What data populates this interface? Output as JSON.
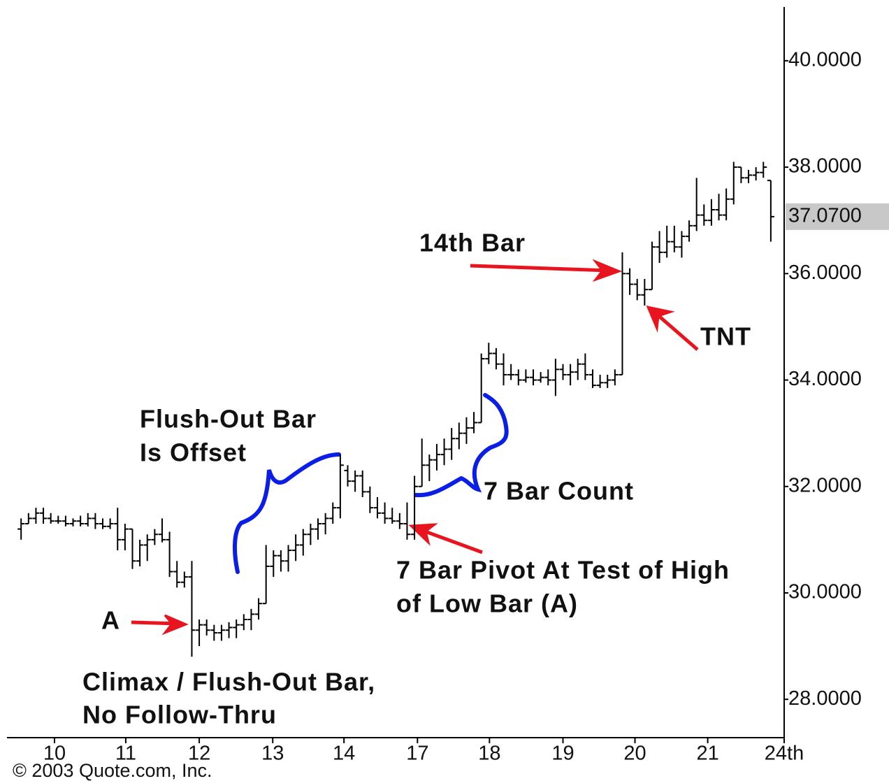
{
  "chart_data": {
    "type": "ohlc",
    "color": "#000000",
    "ylim": [
      27.28,
      41.01
    ],
    "yticks": [
      {
        "value": 28,
        "label": "28.0000"
      },
      {
        "value": 30,
        "label": "30.0000"
      },
      {
        "value": 32,
        "label": "32.0000"
      },
      {
        "value": 34,
        "label": "34.0000"
      },
      {
        "value": 36,
        "label": "36.0000"
      },
      {
        "value": 38,
        "label": "38.0000"
      },
      {
        "value": 40,
        "label": "40.0000"
      }
    ],
    "last_price": {
      "value": 37.07,
      "label": "37.0700"
    },
    "xlim": [
      -1.9,
      102.8
    ],
    "xticks": [
      {
        "value": 4.5,
        "label": "10"
      },
      {
        "value": 14.1,
        "label": "11"
      },
      {
        "value": 24.0,
        "label": "12"
      },
      {
        "value": 33.9,
        "label": "13"
      },
      {
        "value": 43.5,
        "label": "14"
      },
      {
        "value": 53.4,
        "label": "17"
      },
      {
        "value": 63.1,
        "label": "18"
      },
      {
        "value": 73.0,
        "label": "19"
      },
      {
        "value": 82.7,
        "label": "20"
      },
      {
        "value": 92.5,
        "label": "21"
      },
      {
        "value": 102.8,
        "label": "24th"
      }
    ],
    "open": [
      31.2,
      31.3,
      31.4,
      31.5,
      31.4,
      31.35,
      31.35,
      31.3,
      31.35,
      31.3,
      31.4,
      31.3,
      31.25,
      31.3,
      31.0,
      31.2,
      30.6,
      30.9,
      31.0,
      31.1,
      31.0,
      30.4,
      30.2,
      30.3,
      29.3,
      29.4,
      29.3,
      29.25,
      29.3,
      29.35,
      29.4,
      29.5,
      29.6,
      29.8,
      30.5,
      30.7,
      30.6,
      30.8,
      30.9,
      31.1,
      31.2,
      31.3,
      31.4,
      31.6,
      32.3,
      32.1,
      32.2,
      31.9,
      31.6,
      31.5,
      31.4,
      31.35,
      31.3,
      31.1,
      32.0,
      32.4,
      32.5,
      32.6,
      32.7,
      32.9,
      33.0,
      33.1,
      33.2,
      34.4,
      34.5,
      34.3,
      34.1,
      34.1,
      34.0,
      34.05,
      34.0,
      34.05,
      34.0,
      34.2,
      34.1,
      34.15,
      34.3,
      34.1,
      33.9,
      33.95,
      34.0,
      34.1,
      36.0,
      35.8,
      35.6,
      35.7,
      36.5,
      36.4,
      36.6,
      36.5,
      36.7,
      36.9,
      37.1,
      37.0,
      37.2,
      37.1,
      37.4,
      38.0,
      37.8,
      37.85,
      37.9,
      37.75
    ],
    "high": [
      31.4,
      31.5,
      31.6,
      31.6,
      31.5,
      31.45,
      31.45,
      31.4,
      31.45,
      31.5,
      31.5,
      31.4,
      31.4,
      31.6,
      31.3,
      31.2,
      31.0,
      31.1,
      31.2,
      31.4,
      31.15,
      30.6,
      30.4,
      30.6,
      29.5,
      29.5,
      29.4,
      29.4,
      29.45,
      29.5,
      29.6,
      29.7,
      29.9,
      30.9,
      30.8,
      30.8,
      30.9,
      31.1,
      31.2,
      31.3,
      31.4,
      31.5,
      31.7,
      32.6,
      32.4,
      32.3,
      32.3,
      32.0,
      31.8,
      31.7,
      31.6,
      31.5,
      31.7,
      32.2,
      32.9,
      32.6,
      32.8,
      32.9,
      33.1,
      33.2,
      33.3,
      33.4,
      34.5,
      34.7,
      34.6,
      34.5,
      34.3,
      34.2,
      34.2,
      34.2,
      34.15,
      34.2,
      34.4,
      34.3,
      34.3,
      34.4,
      34.5,
      34.2,
      34.1,
      34.1,
      34.2,
      36.4,
      36.1,
      35.9,
      35.9,
      36.6,
      36.8,
      36.9,
      36.9,
      36.8,
      37.0,
      37.8,
      37.3,
      37.4,
      37.5,
      37.6,
      38.1,
      38.0,
      37.95,
      38.0,
      38.1,
      37.75
    ],
    "low": [
      31.0,
      31.3,
      31.3,
      31.3,
      31.3,
      31.3,
      31.25,
      31.25,
      31.25,
      31.25,
      31.2,
      31.2,
      31.2,
      30.8,
      30.8,
      30.45,
      30.5,
      30.6,
      30.9,
      30.95,
      30.3,
      30.1,
      30.1,
      28.8,
      29.0,
      29.2,
      29.1,
      29.1,
      29.15,
      29.15,
      29.3,
      29.3,
      29.5,
      29.8,
      30.3,
      30.4,
      30.4,
      30.6,
      30.7,
      30.9,
      31.0,
      31.1,
      31.3,
      31.4,
      32.0,
      31.9,
      31.8,
      31.5,
      31.4,
      31.3,
      31.3,
      31.2,
      31.0,
      31.0,
      32.0,
      32.1,
      32.3,
      32.4,
      32.5,
      32.7,
      32.8,
      33.0,
      33.2,
      34.3,
      34.2,
      33.9,
      34.0,
      33.9,
      33.95,
      33.9,
      33.95,
      33.9,
      33.7,
      34.0,
      33.9,
      34.0,
      34.0,
      33.85,
      33.85,
      33.85,
      33.9,
      34.1,
      35.6,
      35.5,
      35.4,
      35.7,
      36.2,
      36.3,
      36.4,
      36.3,
      36.6,
      36.8,
      36.9,
      36.9,
      37.0,
      37.0,
      37.3,
      37.7,
      37.7,
      37.75,
      37.8,
      36.6
    ],
    "close": [
      31.3,
      31.4,
      31.5,
      31.4,
      31.35,
      31.35,
      31.3,
      31.35,
      31.3,
      31.4,
      31.3,
      31.25,
      31.3,
      31.0,
      31.2,
      30.6,
      30.9,
      31.0,
      31.1,
      31.0,
      30.4,
      30.2,
      30.3,
      29.3,
      29.4,
      29.3,
      29.25,
      29.3,
      29.35,
      29.4,
      29.5,
      29.6,
      29.8,
      30.5,
      30.7,
      30.6,
      30.8,
      30.9,
      31.1,
      31.2,
      31.3,
      31.4,
      31.6,
      32.4,
      32.1,
      32.2,
      31.9,
      31.6,
      31.5,
      31.4,
      31.35,
      31.3,
      31.1,
      32.0,
      32.4,
      32.5,
      32.6,
      32.7,
      32.9,
      33.0,
      33.1,
      33.2,
      34.4,
      34.5,
      34.3,
      34.1,
      34.1,
      34.0,
      34.05,
      34.0,
      34.05,
      34.0,
      34.2,
      34.1,
      34.15,
      34.3,
      34.1,
      33.9,
      33.95,
      34.0,
      34.1,
      36.0,
      35.8,
      35.6,
      35.7,
      36.5,
      36.4,
      36.6,
      36.5,
      36.7,
      36.9,
      37.1,
      37.0,
      37.2,
      37.1,
      37.4,
      38.0,
      37.8,
      37.85,
      37.9,
      38.0,
      37.07
    ],
    "annotations": [
      "Flush-Out Bar",
      "Is Offset",
      "A",
      "Climax / Flush-Out Bar,",
      "No Follow-Thru",
      "7 Bar Count",
      "7 Bar Pivot At Test of High",
      "of Low Bar (A)",
      "14th Bar",
      "TNT"
    ],
    "copyright": "© 2003 Quote.com, Inc."
  }
}
